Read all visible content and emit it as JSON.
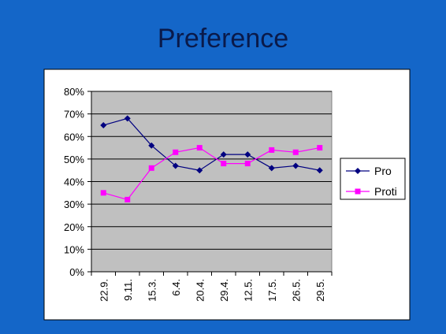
{
  "slide": {
    "title": "Preference"
  },
  "chart_data": {
    "type": "line",
    "title": "",
    "xlabel": "",
    "ylabel": "",
    "categories": [
      "22.9.",
      "9.11.",
      "15.3.",
      "6.4.",
      "20.4.",
      "29.4.",
      "12.5.",
      "17.5.",
      "26.5.",
      "29.5."
    ],
    "ylim": [
      0,
      80
    ],
    "yticks": [
      "0%",
      "10%",
      "20%",
      "30%",
      "40%",
      "50%",
      "60%",
      "70%",
      "80%"
    ],
    "grid": true,
    "plot_background": "#c0c0c0",
    "legend_position": "right",
    "series": [
      {
        "name": "Pro",
        "color": "#000080",
        "marker": "diamond",
        "values": [
          65,
          68,
          56,
          47,
          45,
          52,
          52,
          46,
          47,
          45
        ]
      },
      {
        "name": "Proti",
        "color": "#ff00ff",
        "marker": "square",
        "values": [
          35,
          32,
          46,
          53,
          55,
          48,
          48,
          54,
          53,
          55
        ]
      }
    ]
  }
}
